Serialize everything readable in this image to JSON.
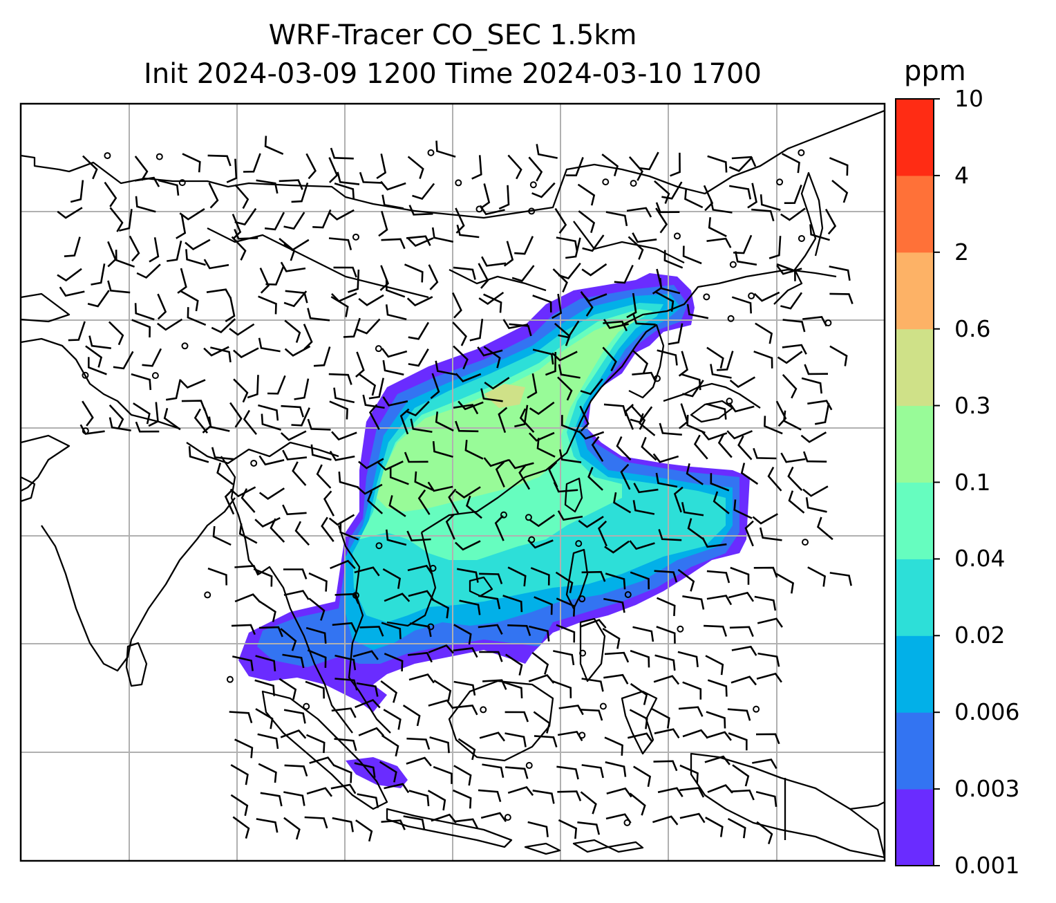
{
  "title": {
    "line1": "WRF-Tracer CO_SEC 1.5km",
    "line2": "Init 2024-03-09 1200 Time 2024-03-10 1700"
  },
  "colorbar": {
    "unit": "ppm",
    "ticks": [
      "0.001",
      "0.003",
      "0.006",
      "0.02",
      "0.04",
      "0.1",
      "0.3",
      "0.6",
      "2",
      "4",
      "10"
    ],
    "colors": [
      "#6a2cff",
      "#3374f2",
      "#02b0e8",
      "#2ddfd8",
      "#66fdbf",
      "#98fb98",
      "#cfe188",
      "#fdb266",
      "#ff7138",
      "#ff2c14"
    ]
  },
  "map": {
    "type": "filled-contour with wind barbs",
    "gridlines": true,
    "coastlines": true,
    "plume_levels": [
      "0.001",
      "0.003",
      "0.006",
      "0.02",
      "0.04",
      "0.1",
      "0.3"
    ]
  }
}
